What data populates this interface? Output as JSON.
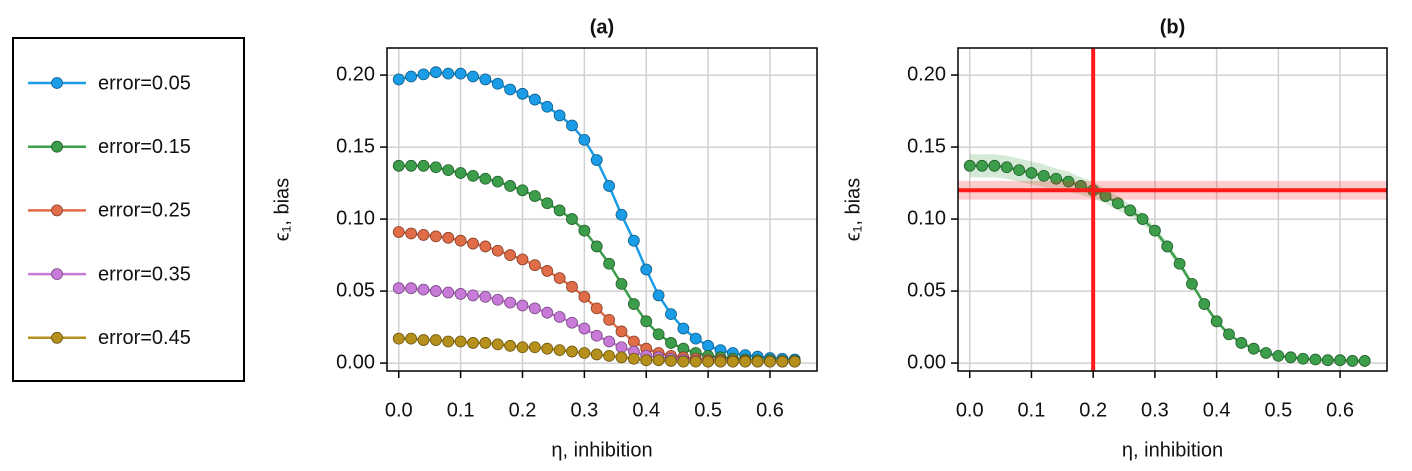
{
  "chart_data": [
    {
      "type": "line",
      "title": "(a)",
      "xlabel": "η, inhibition",
      "ylabel": "ϵ₁, bias",
      "x": [
        0,
        0.02,
        0.04,
        0.06,
        0.08,
        0.1,
        0.12,
        0.14,
        0.16,
        0.18,
        0.2,
        0.22,
        0.24,
        0.26,
        0.28,
        0.3,
        0.32,
        0.34,
        0.36,
        0.38,
        0.4,
        0.42,
        0.44,
        0.46,
        0.48,
        0.5,
        0.52,
        0.54,
        0.56,
        0.58,
        0.6,
        0.62,
        0.64
      ],
      "series": [
        {
          "name": "error=0.05",
          "color": "#1a9ce6",
          "values": [
            0.197,
            0.199,
            0.2005,
            0.202,
            0.201,
            0.201,
            0.199,
            0.197,
            0.194,
            0.19,
            0.187,
            0.183,
            0.178,
            0.172,
            0.165,
            0.155,
            0.141,
            0.123,
            0.103,
            0.085,
            0.065,
            0.047,
            0.034,
            0.024,
            0.017,
            0.012,
            0.009,
            0.007,
            0.0055,
            0.0045,
            0.0035,
            0.003,
            0.0025
          ]
        },
        {
          "name": "error=0.15",
          "color": "#3c9e4a",
          "values": [
            0.137,
            0.137,
            0.137,
            0.136,
            0.134,
            0.132,
            0.13,
            0.128,
            0.126,
            0.123,
            0.12,
            0.116,
            0.111,
            0.106,
            0.1,
            0.092,
            0.081,
            0.069,
            0.055,
            0.041,
            0.029,
            0.02,
            0.014,
            0.01,
            0.007,
            0.005,
            0.004,
            0.003,
            0.0025,
            0.002,
            0.002,
            0.0015,
            0.0015
          ]
        },
        {
          "name": "error=0.25",
          "color": "#e06c48",
          "values": [
            0.091,
            0.09,
            0.089,
            0.088,
            0.087,
            0.085,
            0.083,
            0.081,
            0.078,
            0.075,
            0.072,
            0.068,
            0.064,
            0.059,
            0.053,
            0.046,
            0.038,
            0.03,
            0.022,
            0.015,
            0.01,
            0.007,
            0.005,
            0.004,
            0.003,
            0.002,
            0.002,
            0.0015,
            0.0015,
            0.001,
            0.001,
            0.001,
            0.001
          ]
        },
        {
          "name": "error=0.35",
          "color": "#c87ad8",
          "values": [
            0.052,
            0.052,
            0.051,
            0.05,
            0.049,
            0.048,
            0.047,
            0.046,
            0.044,
            0.042,
            0.04,
            0.038,
            0.035,
            0.032,
            0.028,
            0.024,
            0.019,
            0.015,
            0.011,
            0.008,
            0.005,
            0.004,
            0.003,
            0.002,
            0.0015,
            0.001,
            0.001,
            0.001,
            0.001,
            0.001,
            0.001,
            0.001,
            0.001
          ]
        },
        {
          "name": "error=0.45",
          "color": "#b5901c",
          "values": [
            0.017,
            0.017,
            0.016,
            0.016,
            0.015,
            0.015,
            0.014,
            0.014,
            0.013,
            0.012,
            0.011,
            0.011,
            0.01,
            0.009,
            0.008,
            0.007,
            0.006,
            0.005,
            0.004,
            0.003,
            0.002,
            0.002,
            0.0015,
            0.001,
            0.001,
            0.001,
            0.001,
            0.001,
            0.001,
            0.001,
            0.001,
            0.001,
            0.001
          ]
        }
      ],
      "xlim": [
        -0.019,
        0.676
      ],
      "ylim": [
        -0.0055,
        0.2188
      ],
      "xticks": [
        {
          "value": 0,
          "label": "0.0"
        },
        0.1,
        0.2,
        0.3,
        0.4,
        0.5,
        0.6
      ],
      "yticks": [
        {
          "value": 0,
          "label": "0.00"
        },
        0.05,
        {
          "value": 0.1,
          "label": "0.10"
        },
        0.15,
        {
          "value": 0.2,
          "label": "0.20"
        }
      ],
      "grid": true,
      "legend": "outside-left"
    },
    {
      "type": "line",
      "title": "(b)",
      "xlabel": "η, inhibition",
      "ylabel": "ϵ₁, bias",
      "x": [
        0,
        0.02,
        0.04,
        0.06,
        0.08,
        0.1,
        0.12,
        0.14,
        0.16,
        0.18,
        0.2,
        0.22,
        0.24,
        0.26,
        0.28,
        0.3,
        0.32,
        0.34,
        0.36,
        0.38,
        0.4,
        0.42,
        0.44,
        0.46,
        0.48,
        0.5,
        0.52,
        0.54,
        0.56,
        0.58,
        0.6,
        0.62,
        0.64
      ],
      "series": [
        {
          "color": "#3c9e4a",
          "values": [
            0.137,
            0.137,
            0.137,
            0.136,
            0.134,
            0.132,
            0.13,
            0.128,
            0.126,
            0.123,
            0.12,
            0.116,
            0.111,
            0.106,
            0.1,
            0.092,
            0.081,
            0.069,
            0.055,
            0.041,
            0.029,
            0.02,
            0.014,
            0.01,
            0.007,
            0.005,
            0.004,
            0.003,
            0.0025,
            0.002,
            0.002,
            0.0015,
            0.0015
          ],
          "band_halfwidth": [
            0.008,
            0.008,
            0.008,
            0.008,
            0.008,
            0.008,
            0.008,
            0.007,
            0.007,
            0.006,
            0.006,
            0.005,
            0.005,
            0.004,
            0.004,
            0.003,
            0.003,
            0.003,
            0.002,
            0.002,
            0.002,
            0.001,
            0.001,
            0.001,
            0.001,
            0.001,
            0.001,
            0.001,
            0.001,
            0.001,
            0.001,
            0.001,
            0.001
          ]
        }
      ],
      "vline": {
        "value": 0.2,
        "color": "#ff1a1a"
      },
      "hline": {
        "value": 0.12,
        "halfwidth": 0.0065,
        "color": "#ff1a1a"
      },
      "xlim": [
        -0.019,
        0.676
      ],
      "ylim": [
        -0.0055,
        0.2188
      ],
      "xticks": [
        {
          "value": 0,
          "label": "0.0"
        },
        0.1,
        0.2,
        0.3,
        0.4,
        0.5,
        0.6
      ],
      "yticks": [
        {
          "value": 0,
          "label": "0.00"
        },
        0.05,
        {
          "value": 0.1,
          "label": "0.10"
        },
        0.15,
        {
          "value": 0.2,
          "label": "0.20"
        }
      ],
      "grid": true
    }
  ]
}
